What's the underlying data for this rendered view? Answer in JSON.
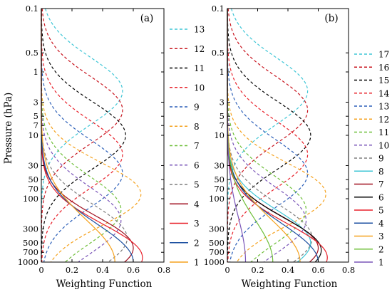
{
  "chart_data": [
    {
      "type": "line",
      "panel_label": "(a)",
      "xlabel": "Weighting Function",
      "ylabel": "Pressure (hPa)",
      "xlim": [
        0,
        0.8
      ],
      "xticks": [
        "0",
        "0.2",
        "0.4",
        "0.6",
        "0.8"
      ],
      "ylim": [
        1000,
        0.1
      ],
      "yscale": "log",
      "yticks": [
        "0.1",
        "0.5",
        "1",
        "3",
        "5",
        "7",
        "10",
        "30",
        "50",
        "70",
        "100",
        "300",
        "500",
        "700",
        "1000"
      ],
      "legend": "right",
      "series": [
        {
          "name": "13",
          "color": "#3fc6d6",
          "style": "dashed",
          "peak_p": 2.0,
          "peak_w": 0.53,
          "width": 0.75
        },
        {
          "name": "12",
          "color": "#c8141e",
          "style": "dashed",
          "peak_p": 4.0,
          "peak_w": 0.53,
          "width": 0.75
        },
        {
          "name": "11",
          "color": "#000000",
          "style": "dashed",
          "peak_p": 10.0,
          "peak_w": 0.55,
          "width": 0.75
        },
        {
          "name": "10",
          "color": "#e8202a",
          "style": "dashed",
          "peak_p": 20.0,
          "peak_w": 0.53,
          "width": 0.75
        },
        {
          "name": "9",
          "color": "#2c5fb8",
          "style": "dashed",
          "peak_p": 40.0,
          "peak_w": 0.53,
          "width": 0.75
        },
        {
          "name": "8",
          "color": "#f5a21e",
          "style": "dashed",
          "peak_p": 85.0,
          "peak_w": 0.65,
          "width": 0.7
        },
        {
          "name": "7",
          "color": "#6fbf3a",
          "style": "dashed",
          "peak_p": 150.0,
          "peak_w": 0.52,
          "width": 0.75
        },
        {
          "name": "6",
          "color": "#7a55b8",
          "style": "dashed",
          "peak_p": 220.0,
          "peak_w": 0.52,
          "width": 0.75
        },
        {
          "name": "5",
          "color": "#7d7d7d",
          "style": "dashed",
          "peak_p": 420.0,
          "peak_w": 0.56,
          "width": 0.75
        },
        {
          "name": "4",
          "color": "#a01020",
          "style": "solid",
          "peak_p": 600.0,
          "peak_w": 0.6,
          "width": 0.7
        },
        {
          "name": "3",
          "color": "#e8202a",
          "style": "solid",
          "peak_p": 850.0,
          "peak_w": 0.66,
          "width": 0.75
        },
        {
          "name": "2",
          "color": "#1b4fa0",
          "style": "solid",
          "peak_p": 1000.0,
          "peak_w": 0.6,
          "width": 0.85
        },
        {
          "name": "1",
          "color": "#f5a21e",
          "style": "solid",
          "peak_p": 1000.0,
          "peak_w": 0.48,
          "width": 0.95
        }
      ]
    },
    {
      "type": "line",
      "panel_label": "(b)",
      "xlabel": "Weighting Function",
      "ylabel": "",
      "xlim": [
        0,
        0.8
      ],
      "xticks": [
        "0",
        "0.2",
        "0.4",
        "0.6",
        "0.8"
      ],
      "ylim": [
        1000,
        0.1
      ],
      "yscale": "log",
      "yticks": [
        "0.1",
        "0.5",
        "1",
        "3",
        "5",
        "7",
        "10",
        "30",
        "50",
        "70",
        "100",
        "300",
        "500",
        "700",
        "1000"
      ],
      "legend": "right",
      "series": [
        {
          "name": "17",
          "color": "#3fc6d6",
          "style": "dashed",
          "peak_p": 2.0,
          "peak_w": 0.53,
          "width": 0.75
        },
        {
          "name": "16",
          "color": "#c8141e",
          "style": "dashed",
          "peak_p": 4.0,
          "peak_w": 0.53,
          "width": 0.75
        },
        {
          "name": "15",
          "color": "#000000",
          "style": "dashed",
          "peak_p": 10.0,
          "peak_w": 0.55,
          "width": 0.75
        },
        {
          "name": "14",
          "color": "#e8202a",
          "style": "dashed",
          "peak_p": 20.0,
          "peak_w": 0.53,
          "width": 0.75
        },
        {
          "name": "13",
          "color": "#2c5fb8",
          "style": "dashed",
          "peak_p": 40.0,
          "peak_w": 0.53,
          "width": 0.75
        },
        {
          "name": "12",
          "color": "#f5a21e",
          "style": "dashed",
          "peak_p": 85.0,
          "peak_w": 0.65,
          "width": 0.7
        },
        {
          "name": "11",
          "color": "#6fbf3a",
          "style": "dashed",
          "peak_p": 150.0,
          "peak_w": 0.52,
          "width": 0.75
        },
        {
          "name": "10",
          "color": "#7a55b8",
          "style": "dashed",
          "peak_p": 220.0,
          "peak_w": 0.52,
          "width": 0.75
        },
        {
          "name": "9",
          "color": "#7d7d7d",
          "style": "dashed",
          "peak_p": 420.0,
          "peak_w": 0.56,
          "width": 0.75
        },
        {
          "name": "8",
          "color": "#3fc6d6",
          "style": "solid",
          "peak_p": 500.0,
          "peak_w": 0.55,
          "width": 0.72
        },
        {
          "name": "7",
          "color": "#a01020",
          "style": "solid",
          "peak_p": 600.0,
          "peak_w": 0.6,
          "width": 0.7
        },
        {
          "name": "6",
          "color": "#000000",
          "style": "solid",
          "peak_p": 650.0,
          "peak_w": 0.62,
          "width": 0.72
        },
        {
          "name": "5",
          "color": "#e8202a",
          "style": "solid",
          "peak_p": 850.0,
          "peak_w": 0.66,
          "width": 0.75
        },
        {
          "name": "4",
          "color": "#1b4fa0",
          "style": "solid",
          "peak_p": 1000.0,
          "peak_w": 0.6,
          "width": 0.85
        },
        {
          "name": "3",
          "color": "#f5a21e",
          "style": "solid",
          "peak_p": 1000.0,
          "peak_w": 0.48,
          "width": 0.95
        },
        {
          "name": "2",
          "color": "#6fbf3a",
          "style": "solid",
          "peak_p": 1000.0,
          "peak_w": 0.3,
          "width": 0.95
        },
        {
          "name": "1",
          "color": "#7a55b8",
          "style": "solid",
          "peak_p": 1000.0,
          "peak_w": 0.12,
          "width": 1.0
        }
      ]
    }
  ]
}
